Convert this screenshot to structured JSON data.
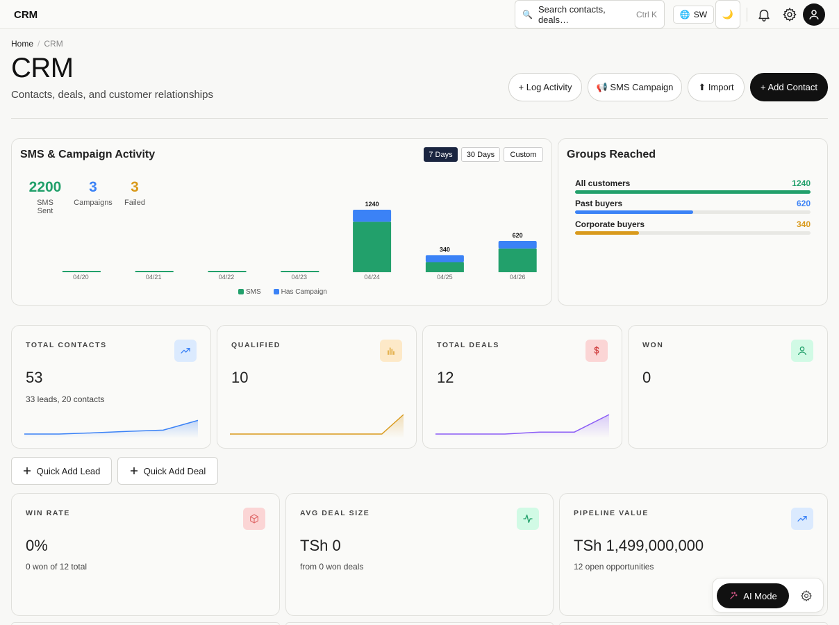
{
  "topbar": {
    "app_name": "CRM",
    "search_placeholder": "Search contacts, deals…",
    "search_shortcut": "Ctrl K",
    "language": "SW",
    "icons": [
      "search-icon",
      "globe-icon",
      "moon-icon",
      "bell-icon",
      "gear-icon",
      "user-icon"
    ]
  },
  "breadcrumb": {
    "home": "Home",
    "sep": "/",
    "current": "CRM"
  },
  "header": {
    "title": "CRM",
    "subtitle": "Contacts, deals, and customer relationships",
    "buttons": {
      "log_activity": "+ Log Activity",
      "sms_campaign": "📢 SMS Campaign",
      "import": "⬆ Import",
      "add_contact": "+ Add Contact"
    }
  },
  "activity": {
    "title": "SMS & Campaign Activity",
    "ranges": [
      "7 Days",
      "30 Days",
      "Custom"
    ],
    "active_range": "7 Days",
    "stats": [
      {
        "value": "2200",
        "label": "SMS Sent",
        "color": "#22a06b"
      },
      {
        "value": "3",
        "label": "Campaigns",
        "color": "#3b82f6"
      },
      {
        "value": "3",
        "label": "Failed",
        "color": "#d99a1c"
      }
    ],
    "legend": [
      {
        "label": "SMS",
        "color": "#22a06b"
      },
      {
        "label": "Has Campaign",
        "color": "#3b82f6"
      }
    ]
  },
  "chart_data": {
    "type": "bar",
    "categories": [
      "04/20",
      "04/21",
      "04/22",
      "04/23",
      "04/24",
      "04/25",
      "04/26"
    ],
    "series": [
      {
        "name": "SMS",
        "values": [
          0,
          0,
          0,
          0,
          1000,
          200,
          470
        ]
      },
      {
        "name": "Has Campaign",
        "values": [
          0,
          0,
          0,
          0,
          240,
          140,
          150
        ]
      }
    ],
    "totals": [
      0,
      0,
      0,
      0,
      1240,
      340,
      620
    ],
    "ylim": [
      0,
      1240
    ],
    "colors": {
      "SMS": "#22a06b",
      "Has Campaign": "#3b82f6"
    },
    "legend_position": "bottom-center"
  },
  "groups": {
    "title": "Groups Reached",
    "items": [
      {
        "name": "All customers",
        "value": "1240",
        "fraction": 1.0,
        "color": "#22a06b"
      },
      {
        "name": "Past buyers",
        "value": "620",
        "fraction": 0.5,
        "color": "#3b82f6"
      },
      {
        "name": "Corporate buyers",
        "value": "340",
        "fraction": 0.27,
        "color": "#d99a1c"
      }
    ]
  },
  "kpis_top": [
    {
      "label": "TOTAL CONTACTS",
      "value": "53",
      "sub": "33 leads, 20 contacts",
      "icon": "trending-up-icon",
      "color": "#3b82f6",
      "bg": "#dbeafe",
      "spark": [
        0.0,
        0.0,
        0.06,
        0.14,
        0.2,
        0.7
      ]
    },
    {
      "label": "QUALIFIED",
      "value": "10",
      "sub": "",
      "icon": "bar-chart-icon",
      "color": "#d99a1c",
      "bg": "#fde9c8",
      "spark": [
        0.0,
        0.0,
        0.0,
        0.0,
        0.0,
        0.0,
        0.0,
        0.0,
        1.0
      ]
    },
    {
      "label": "TOTAL DEALS",
      "value": "12",
      "sub": "",
      "icon": "dollar-icon",
      "color": "#8b5cf6",
      "bg": "#fbd5d5",
      "spark": [
        0.0,
        0.0,
        0.0,
        0.1,
        0.1,
        1.0
      ]
    },
    {
      "label": "WON",
      "value": "0",
      "sub": "",
      "icon": "user-icon",
      "color": "#22a06b",
      "bg": "#d1fae5",
      "spark": []
    }
  ],
  "quick_actions": {
    "lead": "Quick Add Lead",
    "deal": "Quick Add Deal"
  },
  "kpis_bottom": [
    {
      "label": "WIN RATE",
      "value": "0%",
      "sub": "0 won of 12 total",
      "icon": "box-icon",
      "color": "#e06c6c",
      "bg": "#fbd5d5"
    },
    {
      "label": "AVG DEAL SIZE",
      "value": "TSh 0",
      "sub": "from 0 won deals",
      "icon": "activity-icon",
      "color": "#22a06b",
      "bg": "#d1fae5"
    },
    {
      "label": "PIPELINE VALUE",
      "value": "TSh 1,499,000,000",
      "sub": "12 open opportunities",
      "icon": "trending-up-icon",
      "color": "#3b82f6",
      "bg": "#dbeafe"
    }
  ],
  "ai": {
    "label": "AI Mode"
  }
}
